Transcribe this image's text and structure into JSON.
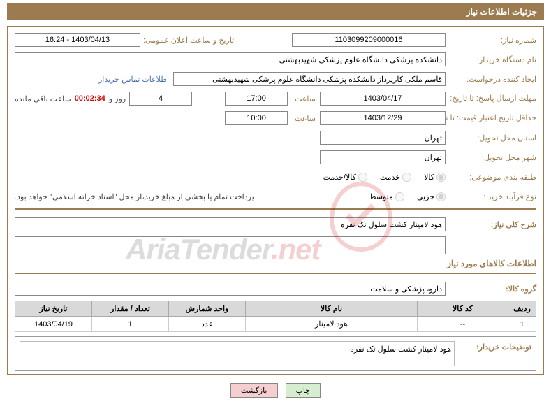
{
  "header": {
    "title": "جزئیات اطلاعات نیاز"
  },
  "fields": {
    "need_no_label": "شماره نیاز:",
    "need_no": "1103099209000016",
    "announce_label": "تاریخ و ساعت اعلان عمومی:",
    "announce_val": "1403/04/13 - 16:24",
    "buyer_org_label": "نام دستگاه خریدار:",
    "buyer_org": "دانشکده پزشکی دانشگاه علوم پزشکی شهیدبهشتی",
    "requester_label": "ایجاد کننده درخواست:",
    "requester": "قاسم ملکی کارپرداز دانشکده پزشکی دانشگاه علوم پزشکی شهیدبهشتی",
    "contact_link": "اطلاعات تماس خریدار",
    "deadline_reply_label": "مهلت ارسال پاسخ:",
    "until_label": "تا تاریخ:",
    "deadline_date": "1403/04/17",
    "time_label": "ساعت",
    "deadline_time": "17:00",
    "days_remain": "4",
    "days_and": "روز و",
    "countdown": "00:02:34",
    "remaining_label": "ساعت باقی مانده",
    "validity_label": "حداقل تاریخ اعتبار قیمت:",
    "validity_date": "1403/12/29",
    "validity_time": "10:00",
    "delivery_province_label": "استان محل تحویل:",
    "delivery_province": "تهران",
    "delivery_city_label": "شهر محل تحویل:",
    "delivery_city": "تهران",
    "category_label": "طبقه بندی موضوعی:",
    "cat_goods": "کالا",
    "cat_service": "خدمت",
    "cat_both": "کالا/خدمت",
    "process_label": "نوع فرآیند خرید :",
    "proc_minor": "جزیی",
    "proc_medium": "متوسط",
    "payment_note": "پرداخت تمام یا بخشی از مبلغ خرید،از محل \"اسناد خزانه اسلامی\" خواهد بود.",
    "general_desc_label": "شرح کلی نیاز:",
    "general_desc": "هود لامینار کشت سلول تک نفره",
    "goods_info_title": "اطلاعات کالاهای مورد نیاز",
    "goods_group_label": "گروه کالا:",
    "goods_group": "دارو، پزشکی و سلامت"
  },
  "table": {
    "headers": [
      "ردیف",
      "کد کالا",
      "نام کالا",
      "واحد شمارش",
      "تعداد / مقدار",
      "تاریخ نیاز"
    ],
    "widths": [
      "40px",
      "130px",
      "auto",
      "110px",
      "110px",
      "110px"
    ],
    "rows": [
      {
        "cells": [
          "1",
          "--",
          "هود لامینار",
          "عدد",
          "1",
          "1403/04/19"
        ]
      }
    ]
  },
  "buyer_notes": {
    "label": "توضیحات خریدار:",
    "text": "هود لامینار کشت سلول تک نفره"
  },
  "buttons": {
    "print": "چاپ",
    "back": "بازگشت"
  },
  "watermark": {
    "text1": "AriaTender",
    "text2": ".net"
  },
  "colors": {
    "brand": "#9b7b4f",
    "link": "#4a6fb3",
    "countdown": "#c00"
  }
}
